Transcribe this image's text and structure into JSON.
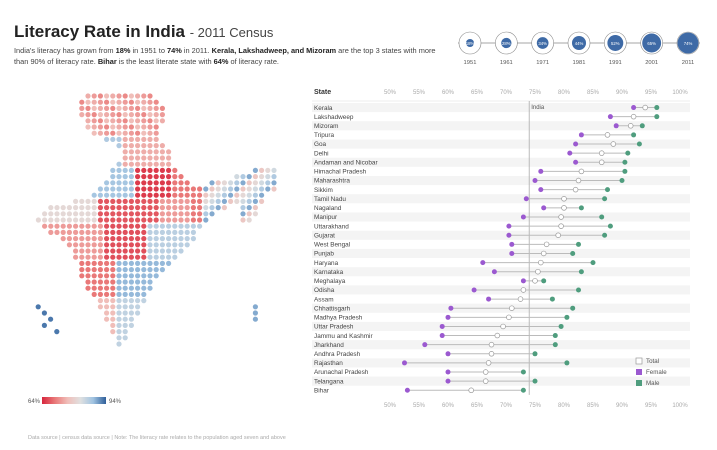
{
  "header": {
    "title": "Literacy Rate in India",
    "subtitle": "- 2011 Census",
    "desc": [
      {
        "t": "India's literacy has grown from ",
        "b": false
      },
      {
        "t": "18%",
        "b": true
      },
      {
        "t": " in 1951 to ",
        "b": false
      },
      {
        "t": "74%",
        "b": true
      },
      {
        "t": " in 2011. ",
        "b": false
      },
      {
        "t": "Kerala, Lakshadweep, and Mizoram",
        "b": true
      },
      {
        "t": " are the top 3 states with more than 90%  of literacy rate. ",
        "b": false
      },
      {
        "t": "Bihar",
        "b": true
      },
      {
        "t": " is the least literate state with ",
        "b": false
      },
      {
        "t": "64%",
        "b": true
      },
      {
        "t": " of literacy rate.",
        "b": false
      }
    ]
  },
  "timeline": {
    "years": [
      "1951",
      "1961",
      "1971",
      "1981",
      "1991",
      "2001",
      "2011"
    ],
    "rates": [
      "18%",
      "28%",
      "34%",
      "44%",
      "52%",
      "65%",
      "74%"
    ],
    "values": [
      18,
      28,
      34,
      44,
      52,
      65,
      74
    ]
  },
  "map_legend": {
    "min": "64%",
    "max": "94%"
  },
  "colors": {
    "female": "#9b59d0",
    "male": "#4f9d7e",
    "total_stroke": "#999999",
    "connector": "#bbbbbb",
    "india_line": "#aaaaaa",
    "timeline_fill": "#3e6aa6",
    "map_low": "#d7263d",
    "map_mid": "#e0e0e0",
    "map_high": "#2f5f9a"
  },
  "footnote": "Data source   |   census data source   |   Note: The literacy rate relates to the population aged seven and above",
  "chart_data": {
    "type": "dumbbell",
    "column_header": "State",
    "x_ticks": [
      "50%",
      "55%",
      "60%",
      "65%",
      "70%",
      "75%",
      "80%",
      "85%",
      "90%",
      "95%",
      "100%"
    ],
    "x_range": [
      50,
      100
    ],
    "reference": {
      "label": "India",
      "value": 74
    },
    "legend": [
      "Total",
      "Female",
      "Male"
    ],
    "states": [
      {
        "name": "Kerala",
        "female": 92,
        "total": 94,
        "male": 96
      },
      {
        "name": "Lakshadweep",
        "female": 88,
        "total": 92,
        "male": 96
      },
      {
        "name": "Mizoram",
        "female": 89,
        "total": 91.5,
        "male": 93.5
      },
      {
        "name": "Tripura",
        "female": 83,
        "total": 87.5,
        "male": 92
      },
      {
        "name": "Goa",
        "female": 82,
        "total": 88.5,
        "male": 93
      },
      {
        "name": "Delhi",
        "female": 81,
        "total": 86.5,
        "male": 91
      },
      {
        "name": "Andaman and Nicobar",
        "female": 82,
        "total": 86.5,
        "male": 90.5
      },
      {
        "name": "Himachal Pradesh",
        "female": 76,
        "total": 83,
        "male": 90.5
      },
      {
        "name": "Maharashtra",
        "female": 75,
        "total": 82.5,
        "male": 90
      },
      {
        "name": "Sikkim",
        "female": 76,
        "total": 82,
        "male": 87.5
      },
      {
        "name": "Tamil Nadu",
        "female": 73.5,
        "total": 80,
        "male": 87
      },
      {
        "name": "Nagaland",
        "female": 76.5,
        "total": 80,
        "male": 83
      },
      {
        "name": "Manipur",
        "female": 73,
        "total": 79.5,
        "male": 86.5
      },
      {
        "name": "Uttarakhand",
        "female": 70.5,
        "total": 79.5,
        "male": 88
      },
      {
        "name": "Gujarat",
        "female": 70.5,
        "total": 79,
        "male": 87
      },
      {
        "name": "West Bengal",
        "female": 71,
        "total": 77,
        "male": 82.5
      },
      {
        "name": "Punjab",
        "female": 71,
        "total": 76.5,
        "male": 81.5
      },
      {
        "name": "Haryana",
        "female": 66,
        "total": 76,
        "male": 85
      },
      {
        "name": "Karnataka",
        "female": 68,
        "total": 75.5,
        "male": 83
      },
      {
        "name": "Meghalaya",
        "female": 73,
        "total": 75,
        "male": 76.5
      },
      {
        "name": "Odisha",
        "female": 64.5,
        "total": 73,
        "male": 82.5
      },
      {
        "name": "Assam",
        "female": 67,
        "total": 72.5,
        "male": 78
      },
      {
        "name": "Chhattisgarh",
        "female": 60.5,
        "total": 71,
        "male": 81.5
      },
      {
        "name": "Madhya Pradesh",
        "female": 60,
        "total": 70.5,
        "male": 80.5
      },
      {
        "name": "Uttar Pradesh",
        "female": 59,
        "total": 69.5,
        "male": 79.5
      },
      {
        "name": "Jammu and Kashmir",
        "female": 59,
        "total": 68.5,
        "male": 78.5
      },
      {
        "name": "Jharkhand",
        "female": 56,
        "total": 67.5,
        "male": 78.5
      },
      {
        "name": "Andhra Pradesh",
        "female": 60,
        "total": 67.5,
        "male": 75
      },
      {
        "name": "Rajasthan",
        "female": 52.5,
        "total": 67,
        "male": 80.5
      },
      {
        "name": "Arunachal Pradesh",
        "female": 60,
        "total": 66.5,
        "male": 73
      },
      {
        "name": "Telangana",
        "female": 60,
        "total": 66.5,
        "male": 75
      },
      {
        "name": "Bihar",
        "female": 53,
        "total": 64,
        "male": 73
      }
    ]
  }
}
